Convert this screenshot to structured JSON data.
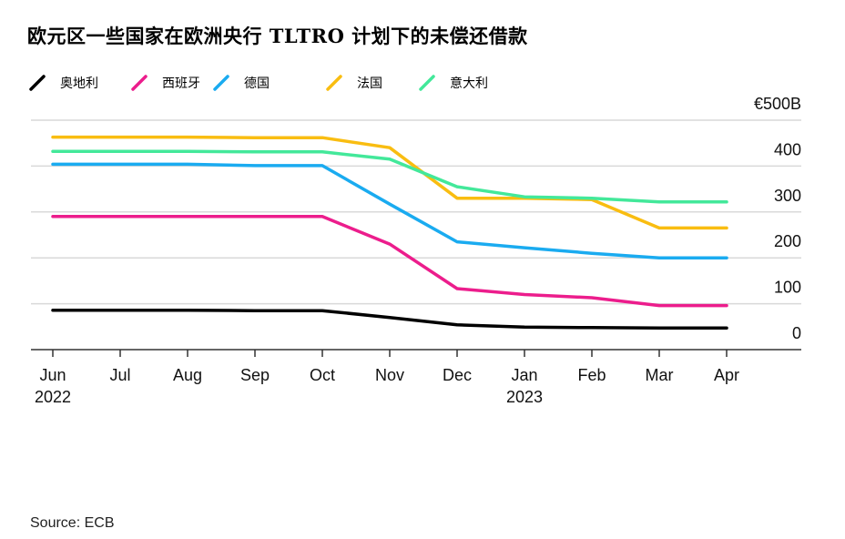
{
  "title": "欧元区一些国家在欧洲央行 TLTRO 计划下的未偿还借款",
  "source": "Source: ECB",
  "chart_data": {
    "type": "line",
    "title": "欧元区一些国家在欧洲央行 TLTRO 计划下的未偿还借款",
    "ylabel": "",
    "ylim": [
      0,
      500
    ],
    "y_ticks": [
      {
        "value": 0,
        "label": "0"
      },
      {
        "value": 100,
        "label": "100"
      },
      {
        "value": 200,
        "label": "200"
      },
      {
        "value": 300,
        "label": "300"
      },
      {
        "value": 400,
        "label": "400"
      },
      {
        "value": 500,
        "label": "€500B"
      }
    ],
    "categories": [
      "Jun",
      "Jul",
      "Aug",
      "Sep",
      "Oct",
      "Nov",
      "Dec",
      "Jan",
      "Feb",
      "Mar",
      "Apr"
    ],
    "year_labels": [
      {
        "index": 0,
        "label": "2022"
      },
      {
        "index": 7,
        "label": "2023"
      }
    ],
    "grid": true,
    "legend_position": "top-left",
    "series": [
      {
        "name": "奥地利",
        "color": "#000000",
        "points": [
          [
            0,
            86
          ],
          [
            1,
            86
          ],
          [
            2,
            86
          ],
          [
            3,
            85
          ],
          [
            4,
            85
          ],
          [
            5,
            70
          ],
          [
            6,
            54
          ],
          [
            7,
            49
          ],
          [
            8,
            48
          ],
          [
            9,
            47
          ],
          [
            10,
            47
          ]
        ]
      },
      {
        "name": "西班牙",
        "color": "#ec1d8c",
        "points": [
          [
            0,
            290
          ],
          [
            1,
            290
          ],
          [
            2,
            290
          ],
          [
            3,
            290
          ],
          [
            4,
            290
          ],
          [
            5,
            230
          ],
          [
            6,
            133
          ],
          [
            7,
            120
          ],
          [
            8,
            113
          ],
          [
            9,
            96
          ],
          [
            10,
            96
          ]
        ]
      },
      {
        "name": "德国",
        "color": "#1aabf0",
        "points": [
          [
            0,
            404
          ],
          [
            1,
            404
          ],
          [
            2,
            404
          ],
          [
            3,
            401
          ],
          [
            4,
            401
          ],
          [
            5,
            317
          ],
          [
            6,
            235
          ],
          [
            7,
            222
          ],
          [
            8,
            210
          ],
          [
            9,
            200
          ],
          [
            10,
            200
          ]
        ]
      },
      {
        "name": "法国",
        "color": "#f9bd11",
        "points": [
          [
            0,
            463
          ],
          [
            1,
            463
          ],
          [
            2,
            463
          ],
          [
            3,
            462
          ],
          [
            4,
            462
          ],
          [
            5,
            440
          ],
          [
            6,
            330
          ],
          [
            7,
            330
          ],
          [
            8,
            327
          ],
          [
            9,
            265
          ],
          [
            10,
            265
          ]
        ]
      },
      {
        "name": "意大利",
        "color": "#43e89a",
        "points": [
          [
            0,
            432
          ],
          [
            1,
            432
          ],
          [
            2,
            432
          ],
          [
            3,
            431
          ],
          [
            4,
            431
          ],
          [
            5,
            415
          ],
          [
            6,
            355
          ],
          [
            7,
            333
          ],
          [
            8,
            330
          ],
          [
            9,
            322
          ],
          [
            10,
            322
          ]
        ]
      }
    ]
  }
}
